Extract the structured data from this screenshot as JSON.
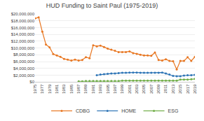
{
  "chart_data": {
    "type": "line",
    "title": "HUD Funding to Saint Paul (1975-2019)",
    "x": [
      1975,
      1976,
      1977,
      1978,
      1979,
      1980,
      1981,
      1982,
      1983,
      1984,
      1985,
      1986,
      1987,
      1988,
      1989,
      1990,
      1991,
      1992,
      1993,
      1994,
      1995,
      1996,
      1997,
      1998,
      1999,
      2000,
      2001,
      2002,
      2003,
      2004,
      2005,
      2006,
      2007,
      2008,
      2009,
      2010,
      2011,
      2012,
      2013,
      2014,
      2015,
      2016,
      2017,
      2018,
      2019
    ],
    "series": [
      {
        "name": "CDBG",
        "color": "#e87722",
        "values": [
          18700000,
          19000000,
          14800000,
          11000000,
          10200000,
          8200000,
          7800000,
          7400000,
          6800000,
          6600000,
          6300000,
          6600000,
          6300000,
          6500000,
          7300000,
          7000000,
          10800000,
          10500000,
          10700000,
          10300000,
          9800000,
          9500000,
          9200000,
          8800000,
          8800000,
          8800000,
          9000000,
          8500000,
          8300000,
          8000000,
          7800000,
          7800000,
          7700000,
          8700000,
          6500000,
          6300000,
          6700000,
          6200000,
          6100000,
          3700000,
          6200000,
          6200000,
          7300000,
          6200000,
          7400000
        ]
      },
      {
        "name": "HOME",
        "color": "#2e75b6",
        "values": [
          null,
          null,
          null,
          null,
          null,
          null,
          null,
          null,
          null,
          null,
          null,
          null,
          null,
          null,
          null,
          null,
          null,
          2000000,
          2200000,
          2300000,
          2400000,
          2500000,
          2500000,
          2600000,
          2700000,
          2700000,
          2800000,
          2800000,
          2800000,
          2700000,
          2700000,
          2700000,
          2700000,
          2700000,
          2700000,
          2800000,
          2500000,
          2200000,
          1800000,
          1700000,
          1700000,
          1900000,
          2000000,
          2000000,
          2100000
        ]
      },
      {
        "name": "ESG",
        "color": "#70ad47",
        "values": [
          null,
          null,
          null,
          null,
          null,
          null,
          null,
          null,
          null,
          null,
          null,
          null,
          200000,
          200000,
          300000,
          300000,
          300000,
          300000,
          300000,
          300000,
          300000,
          300000,
          300000,
          300000,
          400000,
          400000,
          400000,
          400000,
          400000,
          400000,
          400000,
          400000,
          400000,
          400000,
          400000,
          400000,
          400000,
          400000,
          400000,
          400000,
          700000,
          700000,
          700000,
          800000,
          900000
        ]
      }
    ],
    "xlim": [
      1975,
      2019
    ],
    "xticks": [
      1975,
      1977,
      1979,
      1981,
      1983,
      1985,
      1987,
      1989,
      1991,
      1993,
      1995,
      1997,
      1999,
      2001,
      2003,
      2005,
      2007,
      2009,
      2011,
      2013,
      2015,
      2017,
      2019
    ],
    "ylim": [
      0,
      20000000
    ],
    "yticks": [
      {
        "value": 0,
        "label": "$0"
      },
      {
        "value": 2000000,
        "label": "$2,000,000"
      },
      {
        "value": 4000000,
        "label": "$4,000,000"
      },
      {
        "value": 6000000,
        "label": "$6,000,000"
      },
      {
        "value": 8000000,
        "label": "$8,000,000"
      },
      {
        "value": 10000000,
        "label": "$10,000,000"
      },
      {
        "value": 12000000,
        "label": "$12,000,000"
      },
      {
        "value": 14000000,
        "label": "$14,000,000"
      },
      {
        "value": 16000000,
        "label": "$16,000,000"
      },
      {
        "value": 18000000,
        "label": "$18,000,000"
      },
      {
        "value": 20000000,
        "label": "$20,000,000"
      }
    ],
    "grid": "y",
    "legend": "bottom",
    "marker": "circle"
  }
}
